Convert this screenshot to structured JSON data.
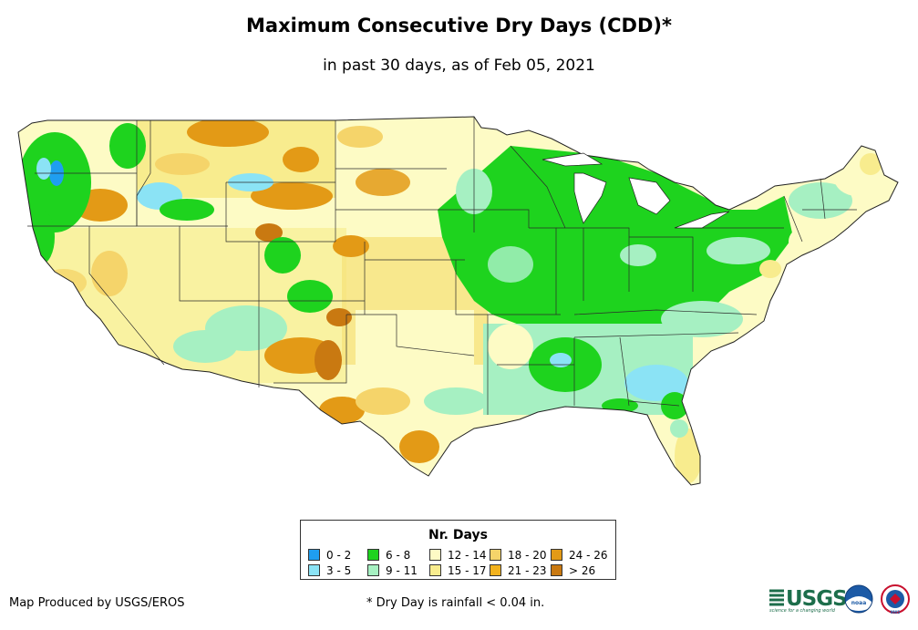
{
  "title": "Maximum Consecutive Dry Days (CDD)*",
  "subtitle": "in past 30 days, as of Feb 05, 2021",
  "legend": {
    "title": "Nr. Days",
    "items": [
      {
        "label": "0 - 2",
        "color": "#1f9ef0"
      },
      {
        "label": "3 - 5",
        "color": "#8be3f5"
      },
      {
        "label": "6 - 8",
        "color": "#1ed31e"
      },
      {
        "label": "9 - 11",
        "color": "#a6f0c2"
      },
      {
        "label": "12 - 14",
        "color": "#fdfbc5"
      },
      {
        "label": "15 - 17",
        "color": "#f8ec8e"
      },
      {
        "label": "18 - 20",
        "color": "#f5d46a"
      },
      {
        "label": "21 - 23",
        "color": "#f2b21d"
      },
      {
        "label": "24 - 26",
        "color": "#e39a16"
      },
      {
        "label": "> 26",
        "color": "#c97911"
      }
    ]
  },
  "footer": {
    "producer": "Map Produced by USGS/EROS",
    "note": "* Dry Day is rainfall < 0.04 in."
  },
  "logos": {
    "usgs": "USGS",
    "usgs_tagline": "science for a changing world",
    "noaa": "noaa",
    "nws": "NWS"
  },
  "colors": {
    "outline": "#333333",
    "state_border": "#2b2b2b"
  }
}
